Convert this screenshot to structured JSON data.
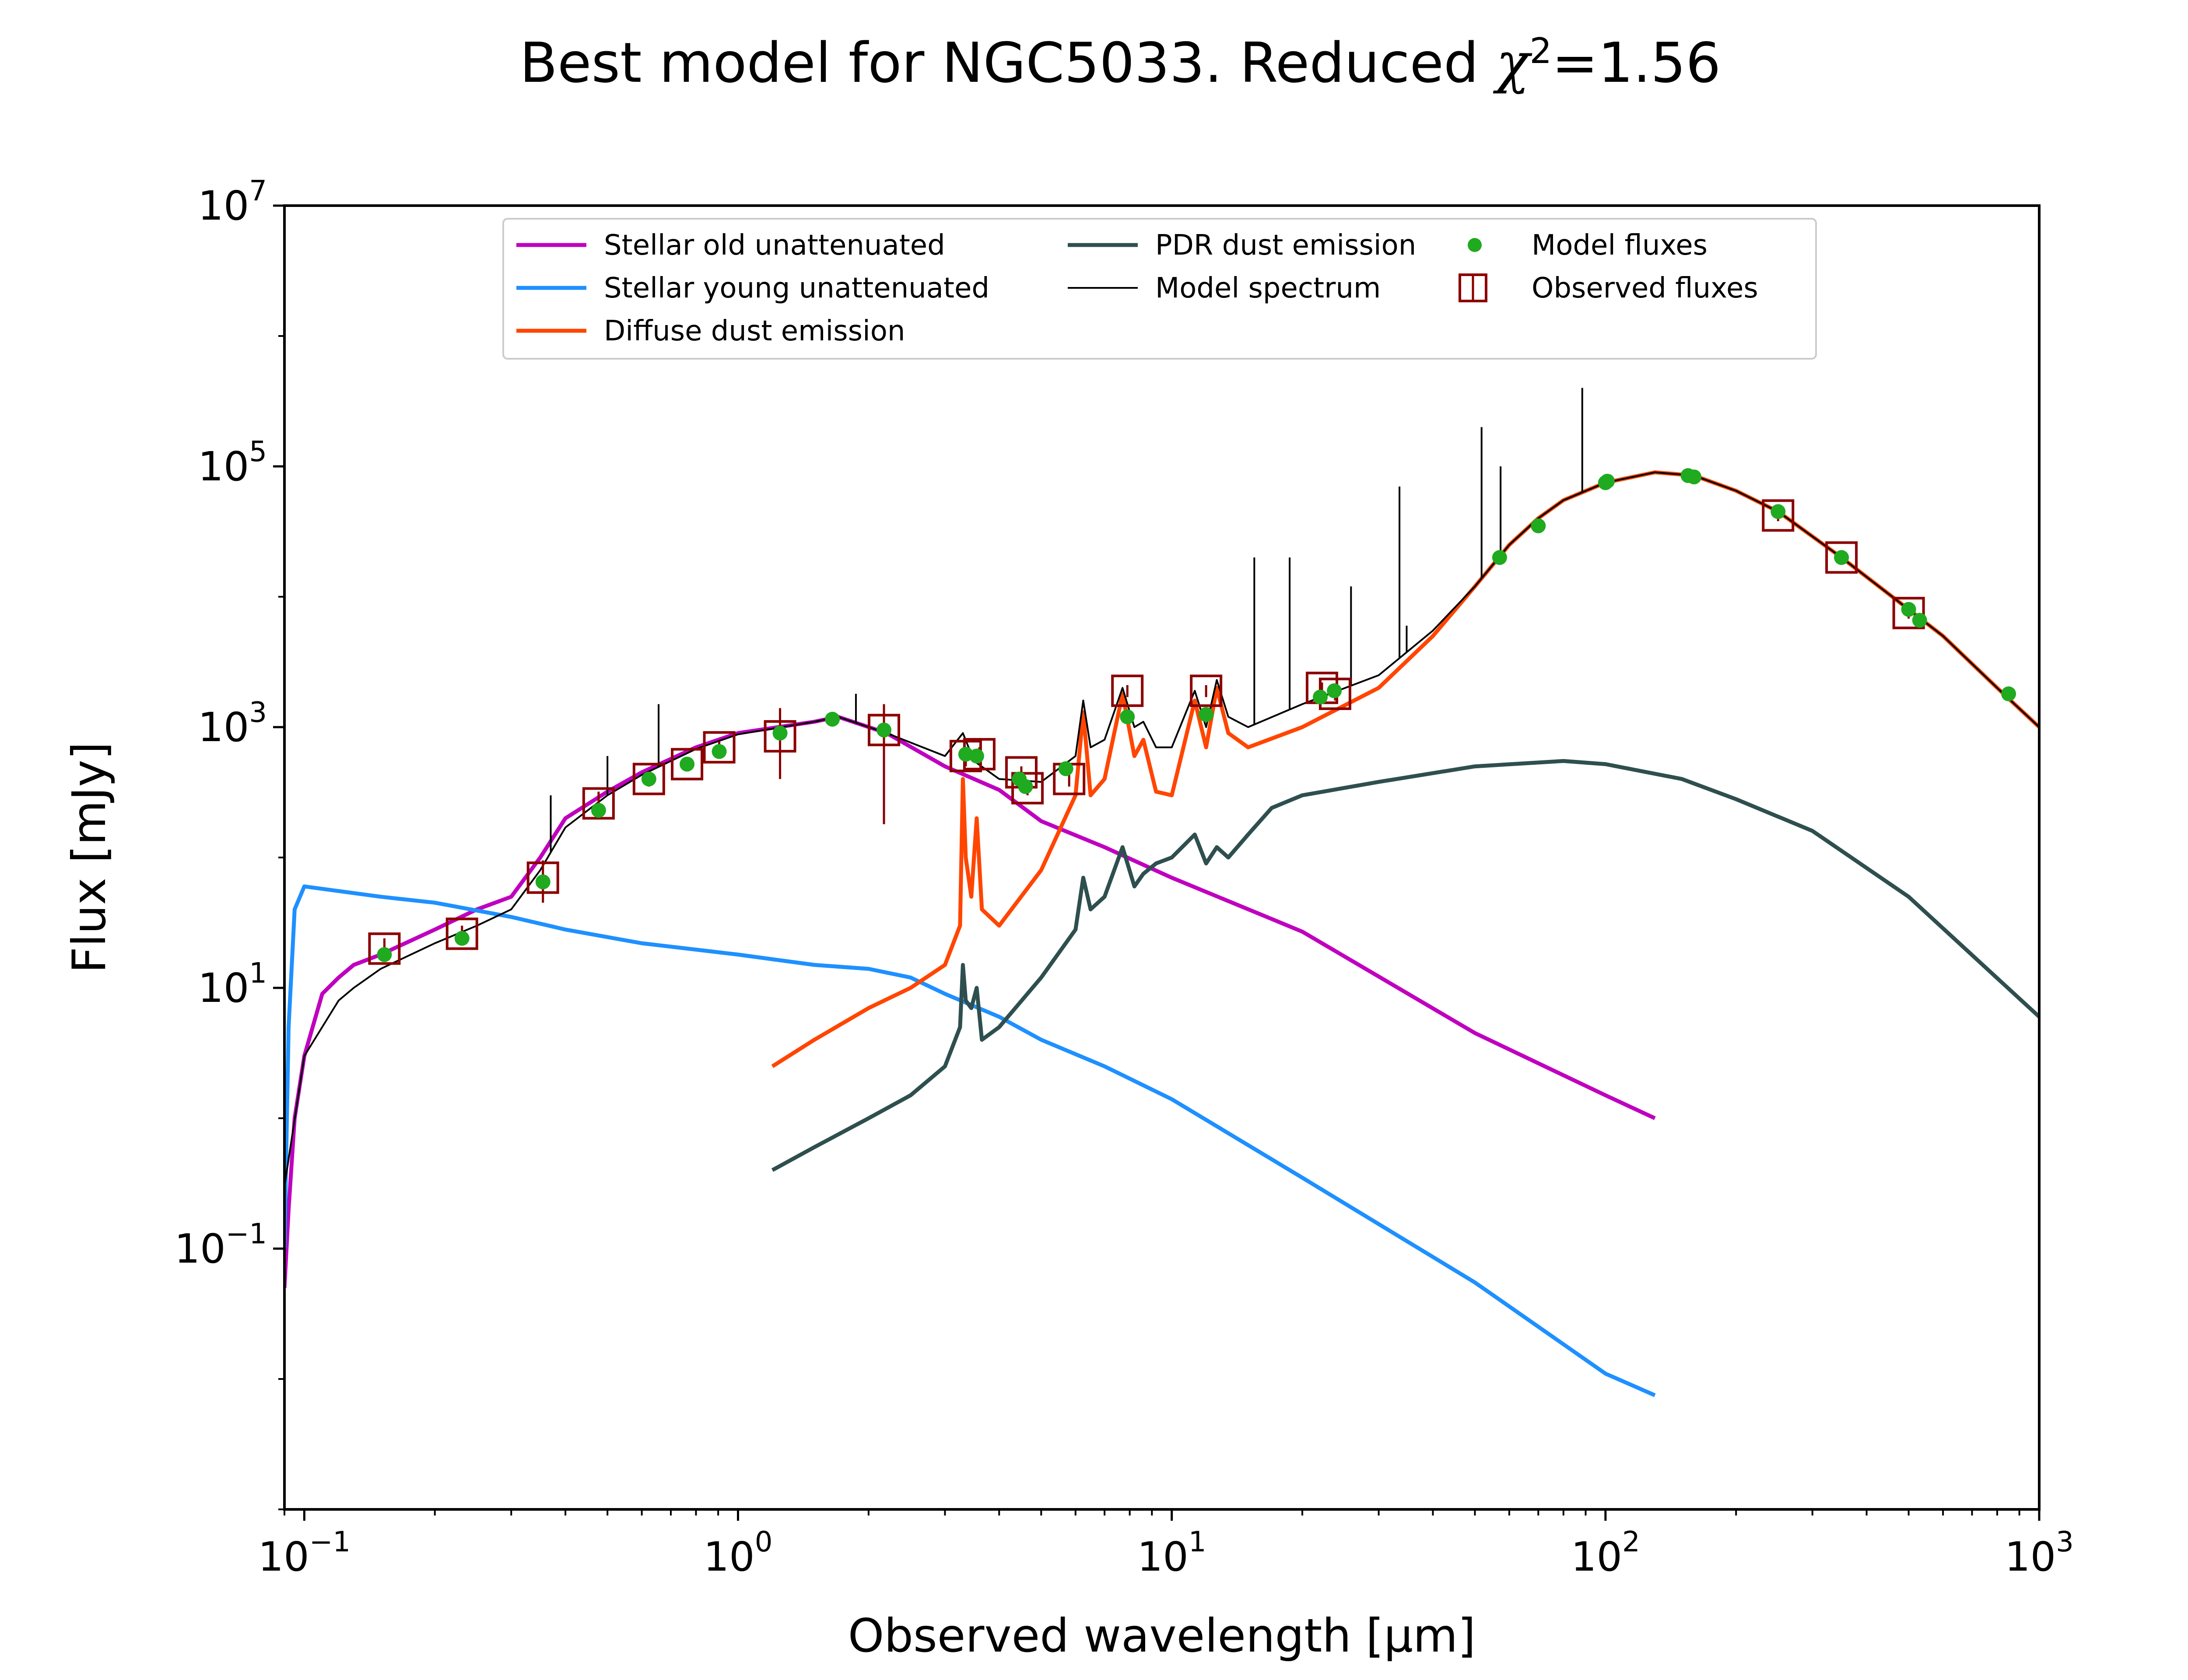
{
  "chart_data": {
    "type": "line",
    "title": "Best model for NGC5033. Reduced",
    "title_chi": "χ",
    "title_sup": "2",
    "title_value": "=1.56",
    "xlabel": "Observed wavelength [μm]",
    "ylabel": "Flux [mJy]",
    "x_scale": "log",
    "y_scale": "log",
    "xlim": [
      0.09,
      1000
    ],
    "ylim": [
      0.001,
      10000000
    ],
    "x_ticks": [
      {
        "value": 0.1,
        "base": "10",
        "exp": "−1"
      },
      {
        "value": 1,
        "base": "10",
        "exp": "0"
      },
      {
        "value": 10,
        "base": "10",
        "exp": "1"
      },
      {
        "value": 100,
        "base": "10",
        "exp": "2"
      },
      {
        "value": 1000,
        "base": "10",
        "exp": "3"
      }
    ],
    "y_ticks": [
      {
        "value": 0.1,
        "base": "10",
        "exp": "−1"
      },
      {
        "value": 10,
        "base": "10",
        "exp": "1"
      },
      {
        "value": 1000,
        "base": "10",
        "exp": "3"
      },
      {
        "value": 100000,
        "base": "10",
        "exp": "5"
      },
      {
        "value": 10000000,
        "base": "10",
        "exp": "7"
      }
    ],
    "legend_position": "top",
    "legend": [
      {
        "label": "Stellar old unattenuated",
        "kind": "line",
        "color": "#bf00bf"
      },
      {
        "label": "Stellar young unattenuated",
        "kind": "line",
        "color": "#1e90ff"
      },
      {
        "label": "Diffuse dust emission",
        "kind": "line",
        "color": "#ff4500"
      },
      {
        "label": "PDR dust emission",
        "kind": "line",
        "color": "#2f4f4f"
      },
      {
        "label": "Model spectrum",
        "kind": "line",
        "color": "#000000"
      },
      {
        "label": "Model fluxes",
        "kind": "dot",
        "color": "#1faa1f"
      },
      {
        "label": "Observed fluxes",
        "kind": "square",
        "color": "#8b0000"
      }
    ],
    "series": [
      {
        "name": "Stellar old unattenuated",
        "color": "#bf00bf",
        "points": [
          [
            0.09,
            0.05
          ],
          [
            0.092,
            0.2
          ],
          [
            0.095,
            1
          ],
          [
            0.1,
            3
          ],
          [
            0.11,
            9
          ],
          [
            0.12,
            12
          ],
          [
            0.13,
            15
          ],
          [
            0.15,
            18
          ],
          [
            0.2,
            28
          ],
          [
            0.25,
            40
          ],
          [
            0.3,
            50
          ],
          [
            0.35,
            100
          ],
          [
            0.4,
            200
          ],
          [
            0.5,
            320
          ],
          [
            0.6,
            450
          ],
          [
            0.8,
            700
          ],
          [
            1.0,
            900
          ],
          [
            1.5,
            1100
          ],
          [
            1.7,
            1200
          ],
          [
            2.2,
            900
          ],
          [
            3,
            500
          ],
          [
            4,
            330
          ],
          [
            5,
            190
          ],
          [
            7,
            120
          ],
          [
            10,
            70
          ],
          [
            20,
            27
          ],
          [
            50,
            4.5
          ],
          [
            100,
            1.5
          ],
          [
            130,
            1.0
          ]
        ]
      },
      {
        "name": "Stellar young unattenuated",
        "color": "#1e90ff",
        "points": [
          [
            0.09,
            0.1
          ],
          [
            0.092,
            5
          ],
          [
            0.095,
            40
          ],
          [
            0.1,
            60
          ],
          [
            0.15,
            50
          ],
          [
            0.2,
            45
          ],
          [
            0.3,
            35
          ],
          [
            0.4,
            28
          ],
          [
            0.6,
            22
          ],
          [
            1.0,
            18
          ],
          [
            1.5,
            15
          ],
          [
            2.0,
            14
          ],
          [
            2.5,
            12
          ],
          [
            3,
            9
          ],
          [
            4,
            6
          ],
          [
            5,
            4
          ],
          [
            7,
            2.5
          ],
          [
            10,
            1.4
          ],
          [
            20,
            0.35
          ],
          [
            50,
            0.055
          ],
          [
            100,
            0.011
          ],
          [
            130,
            0.0075
          ]
        ]
      },
      {
        "name": "Diffuse dust emission",
        "color": "#ff4500",
        "points": [
          [
            1.2,
            2.5
          ],
          [
            1.5,
            4
          ],
          [
            2,
            7
          ],
          [
            2.5,
            10
          ],
          [
            3.0,
            15
          ],
          [
            3.25,
            30
          ],
          [
            3.3,
            400
          ],
          [
            3.35,
            100
          ],
          [
            3.45,
            50
          ],
          [
            3.55,
            200
          ],
          [
            3.65,
            40
          ],
          [
            4.0,
            30
          ],
          [
            5,
            80
          ],
          [
            6,
            300
          ],
          [
            6.25,
            1300
          ],
          [
            6.5,
            300
          ],
          [
            7.0,
            400
          ],
          [
            7.7,
            1800
          ],
          [
            8.2,
            600
          ],
          [
            8.6,
            800
          ],
          [
            9.2,
            320
          ],
          [
            10,
            300
          ],
          [
            11.3,
            1600
          ],
          [
            12.0,
            700
          ],
          [
            12.7,
            2000
          ],
          [
            13.5,
            900
          ],
          [
            15,
            700
          ],
          [
            20,
            1000
          ],
          [
            30,
            2000
          ],
          [
            40,
            5000
          ],
          [
            50,
            12000
          ],
          [
            60,
            25000
          ],
          [
            70,
            40000
          ],
          [
            80,
            55000
          ],
          [
            100,
            75000
          ],
          [
            130,
            90000
          ],
          [
            160,
            85000
          ],
          [
            200,
            65000
          ],
          [
            250,
            45000
          ],
          [
            350,
            20000
          ],
          [
            500,
            8000
          ],
          [
            600,
            5000
          ],
          [
            800,
            2000
          ],
          [
            1000,
            1000
          ]
        ]
      },
      {
        "name": "PDR dust emission",
        "color": "#2f4f4f",
        "points": [
          [
            1.2,
            0.4
          ],
          [
            1.5,
            0.6
          ],
          [
            2,
            1.0
          ],
          [
            2.5,
            1.5
          ],
          [
            3.0,
            2.5
          ],
          [
            3.25,
            5
          ],
          [
            3.3,
            15
          ],
          [
            3.35,
            8
          ],
          [
            3.45,
            7
          ],
          [
            3.55,
            10
          ],
          [
            3.65,
            4
          ],
          [
            4,
            5
          ],
          [
            5,
            12
          ],
          [
            6,
            28
          ],
          [
            6.25,
            70
          ],
          [
            6.5,
            40
          ],
          [
            7.0,
            50
          ],
          [
            7.7,
            120
          ],
          [
            8.2,
            60
          ],
          [
            8.6,
            75
          ],
          [
            9.2,
            90
          ],
          [
            10,
            100
          ],
          [
            11.3,
            150
          ],
          [
            12.0,
            90
          ],
          [
            12.7,
            120
          ],
          [
            13.5,
            100
          ],
          [
            15,
            150
          ],
          [
            17,
            240
          ],
          [
            20,
            300
          ],
          [
            30,
            380
          ],
          [
            50,
            500
          ],
          [
            80,
            550
          ],
          [
            100,
            520
          ],
          [
            150,
            400
          ],
          [
            200,
            280
          ],
          [
            300,
            160
          ],
          [
            500,
            50
          ],
          [
            1000,
            6
          ]
        ]
      },
      {
        "name": "Model spectrum",
        "color": "#000000",
        "points": [
          [
            0.09,
            0.3
          ],
          [
            0.1,
            3
          ],
          [
            0.12,
            8
          ],
          [
            0.13,
            10
          ],
          [
            0.15,
            14
          ],
          [
            0.2,
            22
          ],
          [
            0.25,
            30
          ],
          [
            0.3,
            40
          ],
          [
            0.35,
            80
          ],
          [
            0.4,
            170
          ],
          [
            0.5,
            300
          ],
          [
            0.6,
            430
          ],
          [
            0.8,
            680
          ],
          [
            1.0,
            880
          ],
          [
            1.5,
            1100
          ],
          [
            1.7,
            1200
          ],
          [
            2.2,
            900
          ],
          [
            3,
            600
          ],
          [
            3.3,
            900
          ],
          [
            3.5,
            550
          ],
          [
            4,
            400
          ],
          [
            5,
            380
          ],
          [
            6,
            600
          ],
          [
            6.25,
            1600
          ],
          [
            6.5,
            700
          ],
          [
            7.0,
            800
          ],
          [
            7.7,
            2000
          ],
          [
            8.2,
            1000
          ],
          [
            8.6,
            1100
          ],
          [
            9.2,
            700
          ],
          [
            10,
            700
          ],
          [
            11.3,
            1900
          ],
          [
            12.0,
            1000
          ],
          [
            12.7,
            2300
          ],
          [
            13.5,
            1200
          ],
          [
            15,
            1000
          ],
          [
            20,
            1500
          ],
          [
            30,
            2500
          ],
          [
            40,
            5500
          ],
          [
            50,
            12000
          ],
          [
            60,
            25000
          ],
          [
            70,
            40000
          ],
          [
            80,
            55000
          ],
          [
            100,
            75000
          ],
          [
            130,
            90000
          ],
          [
            160,
            85000
          ],
          [
            200,
            65000
          ],
          [
            250,
            45000
          ],
          [
            350,
            20000
          ],
          [
            500,
            8000
          ],
          [
            600,
            5000
          ],
          [
            800,
            2000
          ],
          [
            1000,
            1000
          ]
        ]
      }
    ],
    "emission_lines": [
      {
        "x": 0.37,
        "y_top": 300
      },
      {
        "x": 0.5,
        "y_top": 600
      },
      {
        "x": 0.656,
        "y_top": 1500
      },
      {
        "x": 1.87,
        "y_top": 1800
      },
      {
        "x": 15.5,
        "y_top": 20000
      },
      {
        "x": 18.7,
        "y_top": 20000
      },
      {
        "x": 25.9,
        "y_top": 12000
      },
      {
        "x": 33.5,
        "y_top": 70000
      },
      {
        "x": 34.8,
        "y_top": 6000
      },
      {
        "x": 51.8,
        "y_top": 200000
      },
      {
        "x": 57.3,
        "y_top": 100000
      },
      {
        "x": 88.4,
        "y_top": 400000
      }
    ],
    "model_fluxes": [
      [
        0.153,
        18
      ],
      [
        0.231,
        24
      ],
      [
        0.355,
        65
      ],
      [
        0.477,
        230
      ],
      [
        0.623,
        400
      ],
      [
        0.763,
        520
      ],
      [
        0.905,
        650
      ],
      [
        1.25,
        900
      ],
      [
        1.65,
        1150
      ],
      [
        2.17,
        950
      ],
      [
        3.35,
        620
      ],
      [
        3.55,
        600
      ],
      [
        4.45,
        400
      ],
      [
        4.6,
        350
      ],
      [
        5.7,
        480
      ],
      [
        7.9,
        1200
      ],
      [
        12,
        1250
      ],
      [
        22,
        1700
      ],
      [
        23.7,
        1900
      ],
      [
        57,
        20000
      ],
      [
        70,
        35000
      ],
      [
        100,
        75000
      ],
      [
        101,
        77000
      ],
      [
        155,
        85000
      ],
      [
        160,
        83000
      ],
      [
        250,
        45000
      ],
      [
        350,
        20000
      ],
      [
        500,
        8000
      ],
      [
        530,
        6600
      ],
      [
        850,
        1800
      ]
    ],
    "observed_fluxes": [
      {
        "x": 0.153,
        "y": 20,
        "err_lo": 16,
        "err_hi": 24
      },
      {
        "x": 0.231,
        "y": 26,
        "err_lo": 22,
        "err_hi": 30
      },
      {
        "x": 0.355,
        "y": 70,
        "err_lo": 45,
        "err_hi": 95
      },
      {
        "x": 0.477,
        "y": 260,
        "err_lo": 210,
        "err_hi": 320
      },
      {
        "x": 0.623,
        "y": 400,
        "err_lo": 350,
        "err_hi": 450
      },
      {
        "x": 0.763,
        "y": 520,
        "err_lo": 460,
        "err_hi": 580
      },
      {
        "x": 0.905,
        "y": 700,
        "err_lo": 620,
        "err_hi": 780
      },
      {
        "x": 1.25,
        "y": 850,
        "err_lo": 400,
        "err_hi": 1400
      },
      {
        "x": 2.17,
        "y": 950,
        "err_lo": 180,
        "err_hi": 1500
      },
      {
        "x": 3.35,
        "y": 600,
        "err_lo": 500,
        "err_hi": 700
      },
      {
        "x": 3.6,
        "y": 620,
        "err_lo": 540,
        "err_hi": 700
      },
      {
        "x": 4.5,
        "y": 450,
        "err_lo": 400,
        "err_hi": 500
      },
      {
        "x": 4.65,
        "y": 340,
        "err_lo": 300,
        "err_hi": 380
      },
      {
        "x": 5.8,
        "y": 400,
        "err_lo": 350,
        "err_hi": 450
      },
      {
        "x": 7.9,
        "y": 1900,
        "err_lo": 1700,
        "err_hi": 2100
      },
      {
        "x": 12,
        "y": 1900,
        "err_lo": 1700,
        "err_hi": 2100
      },
      {
        "x": 22.2,
        "y": 2000,
        "err_lo": 1800,
        "err_hi": 2200
      },
      {
        "x": 23.8,
        "y": 1800,
        "err_lo": 1600,
        "err_hi": 2000
      },
      {
        "x": 250,
        "y": 42000,
        "err_lo": 38000,
        "err_hi": 46000
      },
      {
        "x": 350,
        "y": 20000,
        "err_lo": 18000,
        "err_hi": 22000
      },
      {
        "x": 500,
        "y": 7500,
        "err_lo": 6800,
        "err_hi": 8200
      }
    ]
  }
}
